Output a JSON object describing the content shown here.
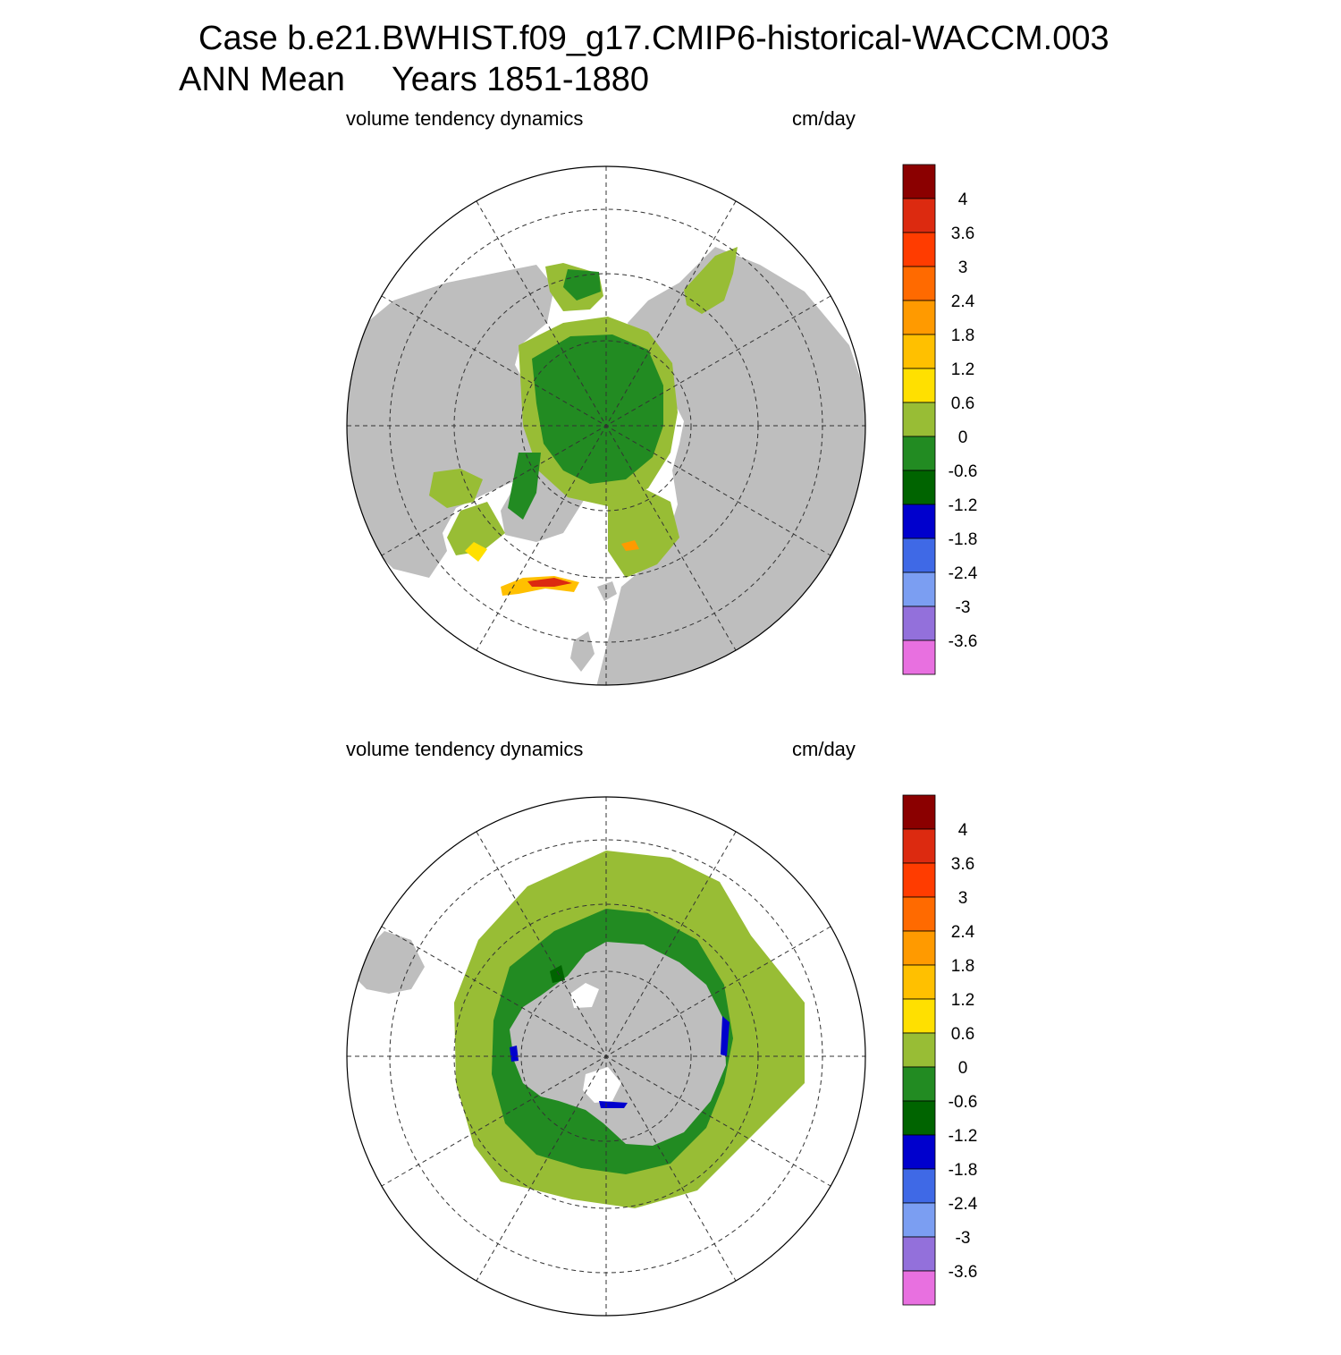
{
  "header": {
    "line1": "Case b.e21.BWHIST.f09_g17.CMIP6-historical-WACCM.003",
    "line2": "ANN Mean     Years 1851-1880"
  },
  "colors": {
    "land": "#bebebe",
    "ocean": "#ffffff",
    "light_green": "#98bd35",
    "mid_green": "#228b22",
    "dark_green": "#006400",
    "blue": "#0000cd",
    "yellow": "#ffe000",
    "orange": "#ff9a00",
    "red": "#e32c10"
  },
  "colorbar": {
    "levels": [
      "4",
      "3.6",
      "3",
      "2.4",
      "1.8",
      "1.2",
      "0.6",
      "0",
      "-0.6",
      "-1.2",
      "-1.8",
      "-2.4",
      "-3",
      "-3.6"
    ],
    "colors": [
      "#8b0000",
      "#dc2a10",
      "#ff3c00",
      "#ff6a00",
      "#ff9a00",
      "#ffc000",
      "#ffe000",
      "#98bd35",
      "#228b22",
      "#006400",
      "#0000cd",
      "#3f69e6",
      "#7b9ef2",
      "#9370db",
      "#e870e0"
    ]
  },
  "panels": [
    {
      "id": "nh",
      "left_title": "volume tendency dynamics",
      "right_title": "cm/day"
    },
    {
      "id": "sh",
      "left_title": "volume tendency dynamics",
      "right_title": "cm/day"
    }
  ]
}
